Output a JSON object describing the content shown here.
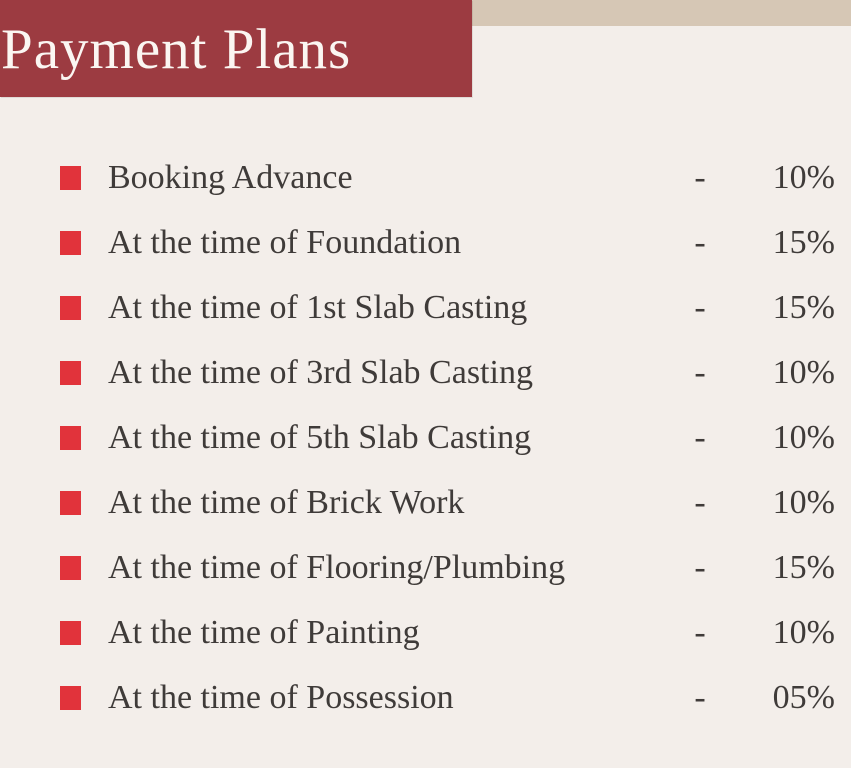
{
  "title": "Payment Plans",
  "colors": {
    "banner": "#9c3b41",
    "top_strip": "#d6c7b5",
    "background": "#f3eeea",
    "bullet": "#e1333b",
    "text": "#3f3b39",
    "title_text": "#fbf6f2"
  },
  "items": [
    {
      "label": "Booking Advance",
      "separator": "-",
      "value": "10%"
    },
    {
      "label": "At the time of Foundation",
      "separator": "-",
      "value": "15%"
    },
    {
      "label": "At the time of 1st Slab Casting",
      "separator": "-",
      "value": "15%"
    },
    {
      "label": "At the time of 3rd Slab Casting",
      "separator": "-",
      "value": "10%"
    },
    {
      "label": "At the time of 5th Slab Casting",
      "separator": "-",
      "value": "10%"
    },
    {
      "label": "At the time of Brick Work",
      "separator": "-",
      "value": "10%"
    },
    {
      "label": "At the time of Flooring/Plumbing",
      "separator": "-",
      "value": "15%"
    },
    {
      "label": "At the time of Painting",
      "separator": "-",
      "value": "10%"
    },
    {
      "label": "At the time of Possession",
      "separator": "-",
      "value": "05%"
    }
  ]
}
